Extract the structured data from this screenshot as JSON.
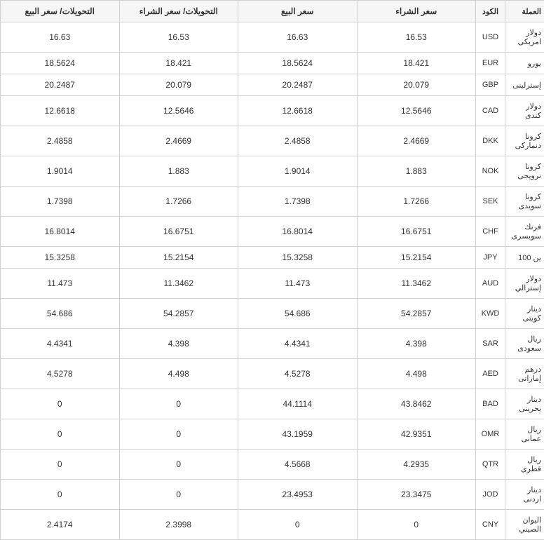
{
  "table": {
    "headers": {
      "currency": "العملة",
      "code": "الكود",
      "buy": "سعر الشراء",
      "sell": "سعر البيع",
      "transferBuy": "التحويلات/ سعر الشراء",
      "transferSell": "التحويلات/ سعر البيع"
    },
    "rows": [
      {
        "currency": "دولار امريكى",
        "code": "USD",
        "buy": "16.53",
        "sell": "16.63",
        "transferBuy": "16.53",
        "transferSell": "16.63"
      },
      {
        "currency": "يورو",
        "code": "EUR",
        "buy": "18.421",
        "sell": "18.5624",
        "transferBuy": "18.421",
        "transferSell": "18.5624"
      },
      {
        "currency": "إسترلينى",
        "code": "GBP",
        "buy": "20.079",
        "sell": "20.2487",
        "transferBuy": "20.079",
        "transferSell": "20.2487"
      },
      {
        "currency": "دولار كندى",
        "code": "CAD",
        "buy": "12.5646",
        "sell": "12.6618",
        "transferBuy": "12.5646",
        "transferSell": "12.6618"
      },
      {
        "currency": "كرونا دنماركى",
        "code": "DKK",
        "buy": "2.4669",
        "sell": "2.4858",
        "transferBuy": "2.4669",
        "transferSell": "2.4858"
      },
      {
        "currency": "كرونا نرويجى",
        "code": "NOK",
        "buy": "1.883",
        "sell": "1.9014",
        "transferBuy": "1.883",
        "transferSell": "1.9014"
      },
      {
        "currency": "كرونا سويدى",
        "code": "SEK",
        "buy": "1.7266",
        "sell": "1.7398",
        "transferBuy": "1.7266",
        "transferSell": "1.7398"
      },
      {
        "currency": "فرنك سويسرى",
        "code": "CHF",
        "buy": "16.6751",
        "sell": "16.8014",
        "transferBuy": "16.6751",
        "transferSell": "16.8014"
      },
      {
        "currency": "ين 100",
        "code": "JPY",
        "buy": "15.2154",
        "sell": "15.3258",
        "transferBuy": "15.2154",
        "transferSell": "15.3258"
      },
      {
        "currency": "دولار إسترالي",
        "code": "AUD",
        "buy": "11.3462",
        "sell": "11.473",
        "transferBuy": "11.3462",
        "transferSell": "11.473"
      },
      {
        "currency": "دينار كويتى",
        "code": "KWD",
        "buy": "54.2857",
        "sell": "54.686",
        "transferBuy": "54.2857",
        "transferSell": "54.686"
      },
      {
        "currency": "ريال سعودى",
        "code": "SAR",
        "buy": "4.398",
        "sell": "4.4341",
        "transferBuy": "4.398",
        "transferSell": "4.4341"
      },
      {
        "currency": "درهم إماراتى",
        "code": "AED",
        "buy": "4.498",
        "sell": "4.5278",
        "transferBuy": "4.498",
        "transferSell": "4.5278"
      },
      {
        "currency": "دينار بحرينى",
        "code": "BAD",
        "buy": "43.8462",
        "sell": "44.1114",
        "transferBuy": "0",
        "transferSell": "0"
      },
      {
        "currency": "ريال عمانى",
        "code": "OMR",
        "buy": "42.9351",
        "sell": "43.1959",
        "transferBuy": "0",
        "transferSell": "0"
      },
      {
        "currency": "ريال قطرى",
        "code": "QTR",
        "buy": "4.2935",
        "sell": "4.5668",
        "transferBuy": "0",
        "transferSell": "0"
      },
      {
        "currency": "دينار اردنى",
        "code": "JOD",
        "buy": "23.3475",
        "sell": "23.4953",
        "transferBuy": "0",
        "transferSell": "0"
      },
      {
        "currency": "اليوان الصيني",
        "code": "CNY",
        "buy": "0",
        "sell": "0",
        "transferBuy": "2.3998",
        "transferSell": "2.4174"
      }
    ],
    "styling": {
      "header_bg": "#f5f5f5",
      "border_color": "#d0d0d0",
      "text_color": "#333333",
      "font_size_header": 12,
      "font_size_cell": 12,
      "font_size_small": 11
    }
  }
}
